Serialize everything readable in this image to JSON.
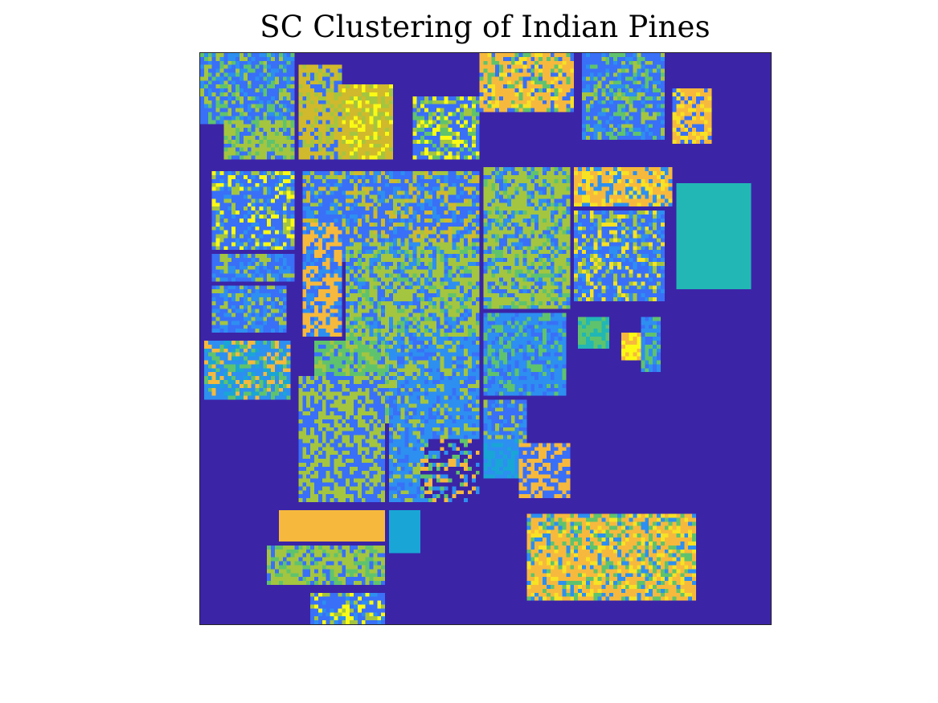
{
  "chart_data": {
    "type": "heatmap",
    "title": "SC Clustering of Indian Pines",
    "xlabel": "",
    "ylabel": "",
    "grid": false,
    "legend": "none",
    "image_size": [
      145,
      145
    ],
    "colormap": "parula",
    "background_cluster": 0,
    "cluster_colors": [
      "#3c24a7",
      "#3970f7",
      "#2d8ff0",
      "#19a6d6",
      "#22b7b4",
      "#5fc36d",
      "#a4c540",
      "#d0b92d",
      "#f6b93d",
      "#f7e224",
      "#fafa14"
    ],
    "fields": [
      {
        "label": "field",
        "cols": [
          0,
          24
        ],
        "rows": [
          0,
          18
        ],
        "palette": [
          1,
          2,
          6,
          5
        ]
      },
      {
        "label": "field",
        "cols": [
          25,
          36
        ],
        "rows": [
          3,
          27
        ],
        "palette": [
          7,
          6,
          1
        ]
      },
      {
        "label": "field",
        "cols": [
          36,
          49
        ],
        "rows": [
          8,
          27
        ],
        "palette": [
          7,
          6,
          10
        ]
      },
      {
        "label": "field",
        "cols": [
          54,
          71
        ],
        "rows": [
          11,
          27
        ],
        "palette": [
          1,
          6,
          5,
          10
        ]
      },
      {
        "label": "field",
        "cols": [
          71,
          95
        ],
        "rows": [
          0,
          15
        ],
        "palette": [
          8,
          9,
          1,
          5
        ]
      },
      {
        "label": "field",
        "cols": [
          97,
          118
        ],
        "rows": [
          0,
          22
        ],
        "palette": [
          1,
          6,
          5,
          2
        ]
      },
      {
        "label": "field",
        "cols": [
          120,
          130
        ],
        "rows": [
          9,
          23
        ],
        "palette": [
          8,
          9,
          1
        ]
      },
      {
        "label": "field",
        "cols": [
          6,
          24
        ],
        "rows": [
          17,
          27
        ],
        "palette": [
          6,
          1,
          5
        ]
      },
      {
        "label": "field",
        "cols": [
          3,
          24
        ],
        "rows": [
          30,
          50
        ],
        "palette": [
          1,
          2,
          6,
          10
        ]
      },
      {
        "label": "field",
        "cols": [
          26,
          71
        ],
        "rows": [
          30,
          53
        ],
        "palette": [
          1,
          7,
          6,
          2
        ]
      },
      {
        "label": "field",
        "cols": [
          72,
          94
        ],
        "rows": [
          29,
          65
        ],
        "palette": [
          6,
          5,
          1,
          2
        ]
      },
      {
        "label": "field",
        "cols": [
          95,
          120
        ],
        "rows": [
          29,
          39
        ],
        "palette": [
          8,
          9,
          2
        ]
      },
      {
        "label": "field",
        "cols": [
          95,
          118
        ],
        "rows": [
          40,
          63
        ],
        "palette": [
          1,
          2,
          6,
          9
        ]
      },
      {
        "label": "field",
        "cols": [
          121,
          140
        ],
        "rows": [
          33,
          60
        ],
        "palette": [
          4
        ]
      },
      {
        "label": "field",
        "cols": [
          26,
          36
        ],
        "rows": [
          43,
          72
        ],
        "palette": [
          8,
          1,
          2
        ]
      },
      {
        "label": "field",
        "cols": [
          37,
          71
        ],
        "rows": [
          48,
          94
        ],
        "palette": [
          6,
          1,
          2,
          5
        ]
      },
      {
        "label": "field",
        "cols": [
          3,
          24
        ],
        "rows": [
          51,
          58
        ],
        "palette": [
          1,
          6,
          2
        ]
      },
      {
        "label": "field",
        "cols": [
          3,
          22
        ],
        "rows": [
          59,
          71
        ],
        "palette": [
          1,
          2,
          6
        ]
      },
      {
        "label": "field",
        "cols": [
          1,
          23
        ],
        "rows": [
          73,
          88
        ],
        "palette": [
          2,
          8,
          3,
          5
        ]
      },
      {
        "label": "field",
        "cols": [
          29,
          47
        ],
        "rows": [
          73,
          82
        ],
        "palette": [
          5,
          6,
          1
        ]
      },
      {
        "label": "field",
        "cols": [
          25,
          47
        ],
        "rows": [
          82,
          114
        ],
        "palette": [
          6,
          1
        ]
      },
      {
        "label": "field",
        "cols": [
          48,
          71
        ],
        "rows": [
          72,
          114
        ],
        "palette": [
          2,
          1,
          6
        ]
      },
      {
        "label": "field",
        "cols": [
          72,
          93
        ],
        "rows": [
          66,
          87
        ],
        "palette": [
          2,
          1,
          5
        ]
      },
      {
        "label": "field",
        "cols": [
          72,
          83
        ],
        "rows": [
          88,
          101
        ],
        "palette": [
          1,
          6,
          2
        ]
      },
      {
        "label": "field",
        "cols": [
          56,
          71
        ],
        "rows": [
          98,
          114
        ],
        "palette": [
          0,
          8,
          5,
          2
        ]
      },
      {
        "label": "field",
        "cols": [
          72,
          81
        ],
        "rows": [
          98,
          108
        ],
        "palette": [
          3,
          2
        ]
      },
      {
        "label": "field",
        "cols": [
          81,
          94
        ],
        "rows": [
          99,
          113
        ],
        "palette": [
          8,
          1
        ]
      },
      {
        "label": "field",
        "cols": [
          96,
          104
        ],
        "rows": [
          67,
          75
        ],
        "palette": [
          4,
          5
        ]
      },
      {
        "label": "field",
        "cols": [
          107,
          112
        ],
        "rows": [
          71,
          78
        ],
        "palette": [
          10,
          8
        ]
      },
      {
        "label": "field",
        "cols": [
          112,
          117
        ],
        "rows": [
          67,
          81
        ],
        "palette": [
          2,
          5,
          1
        ]
      },
      {
        "label": "field",
        "cols": [
          20,
          47
        ],
        "rows": [
          116,
          124
        ],
        "palette": [
          8
        ]
      },
      {
        "label": "field",
        "cols": [
          48,
          56
        ],
        "rows": [
          116,
          127
        ],
        "palette": [
          3
        ]
      },
      {
        "label": "field",
        "cols": [
          17,
          47
        ],
        "rows": [
          125,
          135
        ],
        "palette": [
          6,
          1,
          5
        ]
      },
      {
        "label": "field",
        "cols": [
          28,
          47
        ],
        "rows": [
          137,
          145
        ],
        "palette": [
          1,
          6,
          2,
          10
        ]
      },
      {
        "label": "field",
        "cols": [
          83,
          126
        ],
        "rows": [
          117,
          139
        ],
        "palette": [
          8,
          9,
          2,
          5
        ]
      }
    ]
  }
}
